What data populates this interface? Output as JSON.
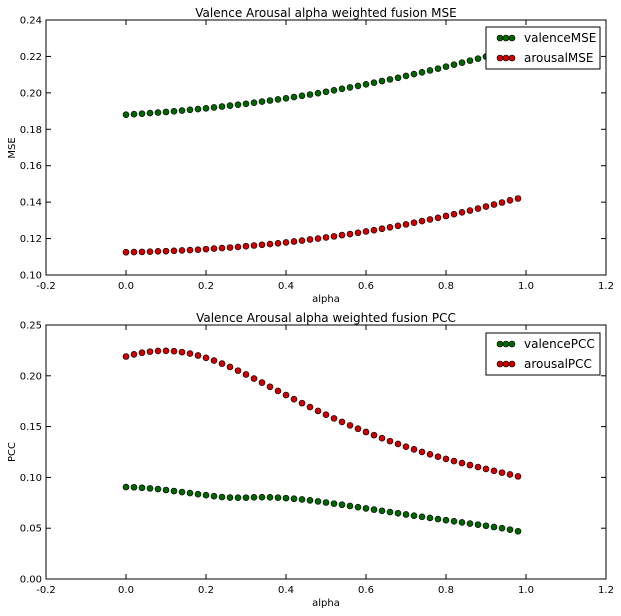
{
  "chart_data": [
    {
      "type": "scatter",
      "title": "Valence Arousal alpha weighted fusion MSE",
      "xlabel": "alpha",
      "ylabel": "MSE",
      "xlim": [
        -0.2,
        1.2
      ],
      "ylim": [
        0.1,
        0.24
      ],
      "xticks": [
        "-0.2",
        "0.0",
        "0.2",
        "0.4",
        "0.6",
        "0.8",
        "1.0",
        "1.2"
      ],
      "yticks": [
        "0.10",
        "0.12",
        "0.14",
        "0.16",
        "0.18",
        "0.20",
        "0.22",
        "0.24"
      ],
      "grid": false,
      "legend_position": "top-right",
      "x": [
        0.0,
        0.02,
        0.04,
        0.06,
        0.08,
        0.1,
        0.12,
        0.14,
        0.16,
        0.18,
        0.2,
        0.22,
        0.24,
        0.26,
        0.28,
        0.3,
        0.32,
        0.34,
        0.36,
        0.38,
        0.4,
        0.42,
        0.44,
        0.46,
        0.48,
        0.5,
        0.52,
        0.54,
        0.56,
        0.58,
        0.6,
        0.62,
        0.64,
        0.66,
        0.68,
        0.7,
        0.72,
        0.74,
        0.76,
        0.78,
        0.8,
        0.82,
        0.84,
        0.86,
        0.88,
        0.9,
        0.92,
        0.94,
        0.96,
        0.98
      ],
      "series": [
        {
          "name": "valenceMSE",
          "color": "#006400",
          "values": [
            0.188,
            0.1883,
            0.1886,
            0.1889,
            0.1892,
            0.1895,
            0.1899,
            0.1903,
            0.1907,
            0.1911,
            0.1915,
            0.192,
            0.1925,
            0.193,
            0.1935,
            0.194,
            0.1946,
            0.1952,
            0.1958,
            0.1964,
            0.197,
            0.1977,
            0.1984,
            0.1991,
            0.1998,
            0.2006,
            0.2014,
            0.2022,
            0.203,
            0.2038,
            0.2047,
            0.2056,
            0.2065,
            0.2074,
            0.2083,
            0.2093,
            0.2103,
            0.2113,
            0.2123,
            0.2133,
            0.2144,
            0.2155,
            0.2166,
            0.2177,
            0.2188,
            0.2199,
            0.2211,
            0.2223,
            0.2235,
            0.2247
          ]
        },
        {
          "name": "arousalMSE",
          "color": "#cc0000",
          "values": [
            0.1125,
            0.1126,
            0.1127,
            0.1128,
            0.113,
            0.1131,
            0.1133,
            0.1135,
            0.1137,
            0.1139,
            0.1142,
            0.1145,
            0.1148,
            0.1151,
            0.1154,
            0.1158,
            0.1162,
            0.1166,
            0.117,
            0.1174,
            0.1179,
            0.1184,
            0.1189,
            0.1195,
            0.12,
            0.1206,
            0.1212,
            0.1219,
            0.1225,
            0.1232,
            0.1239,
            0.1246,
            0.1254,
            0.1262,
            0.127,
            0.1278,
            0.1287,
            0.1296,
            0.1305,
            0.1314,
            0.1324,
            0.1334,
            0.1344,
            0.1354,
            0.1365,
            0.1376,
            0.1387,
            0.1398,
            0.141,
            0.142
          ]
        }
      ]
    },
    {
      "type": "scatter",
      "title": "Valence Arousal alpha weighted fusion PCC",
      "xlabel": "alpha",
      "ylabel": "PCC",
      "xlim": [
        -0.2,
        1.2
      ],
      "ylim": [
        0.0,
        0.25
      ],
      "xticks": [
        "-0.2",
        "0.0",
        "0.2",
        "0.4",
        "0.6",
        "0.8",
        "1.0",
        "1.2"
      ],
      "yticks": [
        "0.00",
        "0.05",
        "0.10",
        "0.15",
        "0.20",
        "0.25"
      ],
      "grid": false,
      "legend_position": "top-right",
      "x": [
        0.0,
        0.02,
        0.04,
        0.06,
        0.08,
        0.1,
        0.12,
        0.14,
        0.16,
        0.18,
        0.2,
        0.22,
        0.24,
        0.26,
        0.28,
        0.3,
        0.32,
        0.34,
        0.36,
        0.38,
        0.4,
        0.42,
        0.44,
        0.46,
        0.48,
        0.5,
        0.52,
        0.54,
        0.56,
        0.58,
        0.6,
        0.62,
        0.64,
        0.66,
        0.68,
        0.7,
        0.72,
        0.74,
        0.76,
        0.78,
        0.8,
        0.82,
        0.84,
        0.86,
        0.88,
        0.9,
        0.92,
        0.94,
        0.96,
        0.98
      ],
      "series": [
        {
          "name": "valencePCC",
          "color": "#006400",
          "values": [
            0.0905,
            0.0903,
            0.0898,
            0.0892,
            0.0885,
            0.0876,
            0.0866,
            0.0856,
            0.0846,
            0.0835,
            0.0825,
            0.0815,
            0.0807,
            0.0802,
            0.08,
            0.0801,
            0.0804,
            0.0805,
            0.0804,
            0.0801,
            0.0796,
            0.079,
            0.0783,
            0.0774,
            0.0764,
            0.0753,
            0.0742,
            0.0731,
            0.0719,
            0.0707,
            0.0695,
            0.0683,
            0.0671,
            0.0659,
            0.0647,
            0.0635,
            0.0623,
            0.0612,
            0.0601,
            0.059,
            0.0579,
            0.0568,
            0.0557,
            0.0546,
            0.0535,
            0.0524,
            0.0512,
            0.05,
            0.0486,
            0.047
          ]
        },
        {
          "name": "arousalPCC",
          "color": "#cc0000",
          "values": [
            0.219,
            0.2211,
            0.2227,
            0.2238,
            0.2245,
            0.2246,
            0.2242,
            0.2233,
            0.2219,
            0.22,
            0.2177,
            0.215,
            0.212,
            0.2087,
            0.2051,
            0.2013,
            0.1973,
            0.1933,
            0.1892,
            0.1851,
            0.181,
            0.177,
            0.1731,
            0.1692,
            0.1654,
            0.1617,
            0.1581,
            0.1546,
            0.1512,
            0.1479,
            0.1447,
            0.1416,
            0.1386,
            0.1357,
            0.1329,
            0.1302,
            0.1276,
            0.1251,
            0.1227,
            0.1204,
            0.1182,
            0.1161,
            0.1141,
            0.1121,
            0.1102,
            0.1083,
            0.1065,
            0.1047,
            0.1029,
            0.101
          ]
        }
      ]
    }
  ]
}
